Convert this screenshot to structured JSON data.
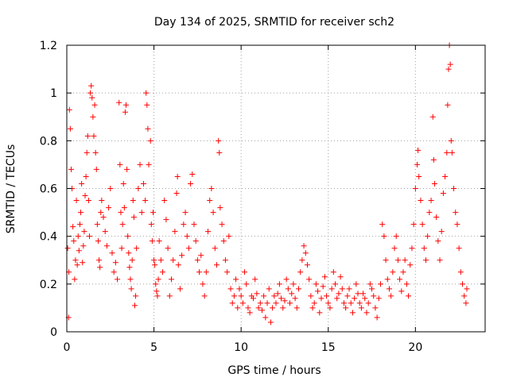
{
  "chart_data": {
    "type": "scatter",
    "title": "Day 134 of 2025, SRMTID for receiver sch2",
    "xlabel": "GPS time / hours",
    "ylabel": "SRMTID / TECUs",
    "xlim": [
      0,
      24
    ],
    "ylim": [
      0,
      1.2
    ],
    "xticks": [
      0,
      5,
      10,
      15,
      20
    ],
    "xtick_labels": [
      "0",
      "5",
      "10",
      "15",
      "20"
    ],
    "yticks": [
      0,
      0.2,
      0.4,
      0.6,
      0.8,
      1.0,
      1.2
    ],
    "ytick_labels": [
      "0",
      "0.2",
      "0.4",
      "0.6",
      "0.8",
      "1",
      "1.2"
    ],
    "grid": true,
    "marker": "+",
    "color": "#ff0000",
    "series": [
      {
        "name": "SRMTID",
        "points": [
          [
            0.05,
            0.35
          ],
          [
            0.1,
            0.06
          ],
          [
            0.12,
            0.25
          ],
          [
            0.15,
            0.93
          ],
          [
            0.2,
            0.85
          ],
          [
            0.25,
            0.68
          ],
          [
            0.3,
            0.6
          ],
          [
            0.35,
            0.44
          ],
          [
            0.4,
            0.38
          ],
          [
            0.45,
            0.22
          ],
          [
            0.5,
            0.3
          ],
          [
            0.55,
            0.55
          ],
          [
            0.6,
            0.28
          ],
          [
            0.65,
            0.4
          ],
          [
            0.7,
            0.34
          ],
          [
            0.75,
            0.45
          ],
          [
            0.8,
            0.5
          ],
          [
            0.85,
            0.62
          ],
          [
            0.9,
            0.29
          ],
          [
            0.95,
            0.36
          ],
          [
            1.0,
            0.42
          ],
          [
            1.05,
            0.57
          ],
          [
            1.1,
            0.65
          ],
          [
            1.15,
            0.75
          ],
          [
            1.2,
            0.82
          ],
          [
            1.25,
            0.55
          ],
          [
            1.3,
            0.4
          ],
          [
            1.35,
            1.0
          ],
          [
            1.4,
            1.03
          ],
          [
            1.45,
            0.98
          ],
          [
            1.5,
            0.9
          ],
          [
            1.55,
            0.82
          ],
          [
            1.6,
            0.95
          ],
          [
            1.65,
            0.75
          ],
          [
            1.7,
            0.68
          ],
          [
            1.75,
            0.45
          ],
          [
            1.8,
            0.38
          ],
          [
            1.85,
            0.3
          ],
          [
            1.9,
            0.27
          ],
          [
            1.95,
            0.5
          ],
          [
            2.0,
            0.55
          ],
          [
            2.1,
            0.48
          ],
          [
            2.2,
            0.42
          ],
          [
            2.3,
            0.36
          ],
          [
            2.4,
            0.52
          ],
          [
            2.5,
            0.6
          ],
          [
            2.6,
            0.33
          ],
          [
            2.7,
            0.25
          ],
          [
            2.8,
            0.29
          ],
          [
            2.9,
            0.22
          ],
          [
            3.0,
            0.96
          ],
          [
            3.05,
            0.7
          ],
          [
            3.1,
            0.5
          ],
          [
            3.15,
            0.35
          ],
          [
            3.2,
            0.45
          ],
          [
            3.25,
            0.62
          ],
          [
            3.3,
            0.52
          ],
          [
            3.35,
            0.92
          ],
          [
            3.4,
            0.95
          ],
          [
            3.45,
            0.68
          ],
          [
            3.5,
            0.4
          ],
          [
            3.55,
            0.33
          ],
          [
            3.6,
            0.27
          ],
          [
            3.65,
            0.22
          ],
          [
            3.7,
            0.18
          ],
          [
            3.75,
            0.3
          ],
          [
            3.8,
            0.55
          ],
          [
            3.85,
            0.48
          ],
          [
            3.9,
            0.11
          ],
          [
            3.95,
            0.15
          ],
          [
            4.0,
            0.35
          ],
          [
            4.1,
            0.6
          ],
          [
            4.2,
            0.7
          ],
          [
            4.3,
            0.5
          ],
          [
            4.4,
            0.62
          ],
          [
            4.5,
            0.55
          ],
          [
            4.55,
            1.0
          ],
          [
            4.6,
            0.95
          ],
          [
            4.65,
            0.85
          ],
          [
            4.7,
            0.7
          ],
          [
            4.8,
            0.8
          ],
          [
            4.85,
            0.45
          ],
          [
            4.9,
            0.38
          ],
          [
            4.95,
            0.5
          ],
          [
            5.0,
            0.3
          ],
          [
            5.05,
            0.28
          ],
          [
            5.1,
            0.2
          ],
          [
            5.15,
            0.17
          ],
          [
            5.2,
            0.15
          ],
          [
            5.25,
            0.22
          ],
          [
            5.3,
            0.38
          ],
          [
            5.4,
            0.3
          ],
          [
            5.5,
            0.25
          ],
          [
            5.6,
            0.55
          ],
          [
            5.7,
            0.47
          ],
          [
            5.8,
            0.35
          ],
          [
            5.9,
            0.15
          ],
          [
            6.0,
            0.22
          ],
          [
            6.1,
            0.3
          ],
          [
            6.2,
            0.42
          ],
          [
            6.3,
            0.58
          ],
          [
            6.35,
            0.65
          ],
          [
            6.4,
            0.28
          ],
          [
            6.5,
            0.18
          ],
          [
            6.6,
            0.32
          ],
          [
            6.7,
            0.45
          ],
          [
            6.8,
            0.5
          ],
          [
            6.9,
            0.4
          ],
          [
            7.0,
            0.35
          ],
          [
            7.1,
            0.62
          ],
          [
            7.2,
            0.66
          ],
          [
            7.3,
            0.45
          ],
          [
            7.4,
            0.38
          ],
          [
            7.5,
            0.3
          ],
          [
            7.6,
            0.25
          ],
          [
            7.7,
            0.32
          ],
          [
            7.8,
            0.2
          ],
          [
            7.9,
            0.15
          ],
          [
            8.0,
            0.25
          ],
          [
            8.1,
            0.42
          ],
          [
            8.2,
            0.55
          ],
          [
            8.3,
            0.6
          ],
          [
            8.4,
            0.5
          ],
          [
            8.5,
            0.35
          ],
          [
            8.6,
            0.28
          ],
          [
            8.7,
            0.8
          ],
          [
            8.75,
            0.75
          ],
          [
            8.8,
            0.52
          ],
          [
            8.9,
            0.45
          ],
          [
            9.0,
            0.38
          ],
          [
            9.1,
            0.3
          ],
          [
            9.2,
            0.25
          ],
          [
            9.3,
            0.4
          ],
          [
            9.4,
            0.18
          ],
          [
            9.5,
            0.12
          ],
          [
            9.6,
            0.15
          ],
          [
            9.7,
            0.22
          ],
          [
            9.8,
            0.1
          ],
          [
            9.9,
            0.18
          ],
          [
            10.0,
            0.15
          ],
          [
            10.1,
            0.12
          ],
          [
            10.2,
            0.25
          ],
          [
            10.3,
            0.2
          ],
          [
            10.4,
            0.1
          ],
          [
            10.5,
            0.08
          ],
          [
            10.6,
            0.15
          ],
          [
            10.7,
            0.14
          ],
          [
            10.8,
            0.22
          ],
          [
            10.9,
            0.16
          ],
          [
            11.0,
            0.1
          ],
          [
            11.1,
            0.12
          ],
          [
            11.2,
            0.09
          ],
          [
            11.3,
            0.15
          ],
          [
            11.4,
            0.06
          ],
          [
            11.5,
            0.12
          ],
          [
            11.6,
            0.18
          ],
          [
            11.7,
            0.04
          ],
          [
            11.8,
            0.1
          ],
          [
            11.9,
            0.15
          ],
          [
            12.0,
            0.12
          ],
          [
            12.1,
            0.16
          ],
          [
            12.2,
            0.2
          ],
          [
            12.3,
            0.14
          ],
          [
            12.4,
            0.1
          ],
          [
            12.5,
            0.13
          ],
          [
            12.6,
            0.22
          ],
          [
            12.7,
            0.18
          ],
          [
            12.8,
            0.12
          ],
          [
            12.9,
            0.16
          ],
          [
            13.0,
            0.2
          ],
          [
            13.1,
            0.14
          ],
          [
            13.2,
            0.1
          ],
          [
            13.3,
            0.18
          ],
          [
            13.4,
            0.25
          ],
          [
            13.5,
            0.3
          ],
          [
            13.6,
            0.36
          ],
          [
            13.7,
            0.33
          ],
          [
            13.8,
            0.28
          ],
          [
            13.9,
            0.22
          ],
          [
            14.0,
            0.15
          ],
          [
            14.1,
            0.1
          ],
          [
            14.2,
            0.12
          ],
          [
            14.3,
            0.2
          ],
          [
            14.4,
            0.17
          ],
          [
            14.5,
            0.08
          ],
          [
            14.6,
            0.14
          ],
          [
            14.7,
            0.19
          ],
          [
            14.8,
            0.23
          ],
          [
            14.9,
            0.15
          ],
          [
            15.0,
            0.12
          ],
          [
            15.1,
            0.1
          ],
          [
            15.2,
            0.18
          ],
          [
            15.3,
            0.25
          ],
          [
            15.4,
            0.2
          ],
          [
            15.5,
            0.14
          ],
          [
            15.6,
            0.16
          ],
          [
            15.7,
            0.23
          ],
          [
            15.8,
            0.18
          ],
          [
            15.9,
            0.12
          ],
          [
            16.0,
            0.1
          ],
          [
            16.1,
            0.15
          ],
          [
            16.2,
            0.18
          ],
          [
            16.3,
            0.12
          ],
          [
            16.4,
            0.08
          ],
          [
            16.5,
            0.14
          ],
          [
            16.6,
            0.2
          ],
          [
            16.7,
            0.16
          ],
          [
            16.8,
            0.12
          ],
          [
            16.9,
            0.1
          ],
          [
            17.0,
            0.16
          ],
          [
            17.1,
            0.14
          ],
          [
            17.2,
            0.08
          ],
          [
            17.3,
            0.12
          ],
          [
            17.4,
            0.2
          ],
          [
            17.5,
            0.18
          ],
          [
            17.6,
            0.15
          ],
          [
            17.7,
            0.1
          ],
          [
            17.8,
            0.06
          ],
          [
            17.9,
            0.14
          ],
          [
            18.0,
            0.2
          ],
          [
            18.1,
            0.45
          ],
          [
            18.2,
            0.4
          ],
          [
            18.3,
            0.3
          ],
          [
            18.4,
            0.22
          ],
          [
            18.5,
            0.18
          ],
          [
            18.6,
            0.15
          ],
          [
            18.7,
            0.25
          ],
          [
            18.8,
            0.35
          ],
          [
            18.9,
            0.4
          ],
          [
            19.0,
            0.3
          ],
          [
            19.1,
            0.22
          ],
          [
            19.2,
            0.17
          ],
          [
            19.3,
            0.25
          ],
          [
            19.4,
            0.3
          ],
          [
            19.5,
            0.2
          ],
          [
            19.6,
            0.15
          ],
          [
            19.7,
            0.28
          ],
          [
            19.8,
            0.35
          ],
          [
            19.9,
            0.45
          ],
          [
            20.0,
            0.6
          ],
          [
            20.1,
            0.7
          ],
          [
            20.15,
            0.76
          ],
          [
            20.2,
            0.65
          ],
          [
            20.3,
            0.55
          ],
          [
            20.4,
            0.45
          ],
          [
            20.5,
            0.35
          ],
          [
            20.6,
            0.3
          ],
          [
            20.7,
            0.4
          ],
          [
            20.8,
            0.5
          ],
          [
            20.9,
            0.55
          ],
          [
            21.0,
            0.9
          ],
          [
            21.05,
            0.72
          ],
          [
            21.1,
            0.62
          ],
          [
            21.2,
            0.48
          ],
          [
            21.3,
            0.38
          ],
          [
            21.4,
            0.3
          ],
          [
            21.5,
            0.42
          ],
          [
            21.6,
            0.58
          ],
          [
            21.7,
            0.65
          ],
          [
            21.8,
            0.75
          ],
          [
            21.85,
            0.95
          ],
          [
            21.9,
            1.1
          ],
          [
            21.95,
            1.2
          ],
          [
            22.0,
            1.12
          ],
          [
            22.05,
            0.8
          ],
          [
            22.1,
            0.75
          ],
          [
            22.2,
            0.6
          ],
          [
            22.3,
            0.5
          ],
          [
            22.4,
            0.45
          ],
          [
            22.5,
            0.35
          ],
          [
            22.6,
            0.25
          ],
          [
            22.7,
            0.2
          ],
          [
            22.8,
            0.15
          ],
          [
            22.9,
            0.12
          ],
          [
            22.95,
            0.18
          ]
        ]
      }
    ]
  }
}
